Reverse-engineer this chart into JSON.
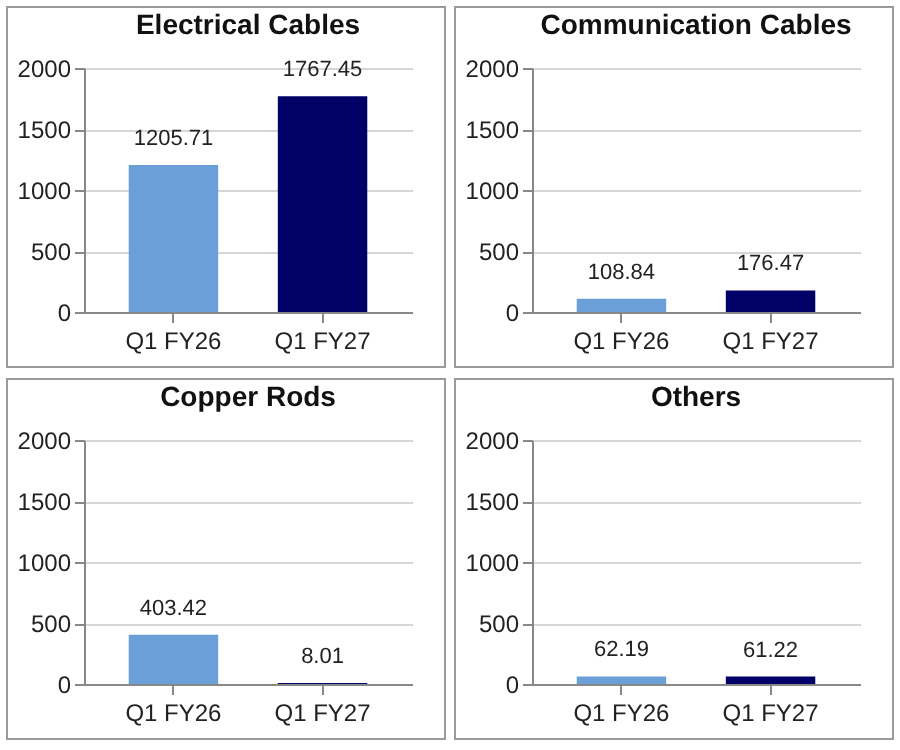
{
  "chart_data": [
    {
      "type": "bar",
      "title": "Electrical Cables",
      "categories": [
        "Q1 FY26",
        "Q1 FY27"
      ],
      "values": [
        1205.71,
        1767.45
      ],
      "colors": [
        "#6a9fd8",
        "#000066"
      ],
      "ylim": [
        0,
        2000
      ],
      "yticks": [
        0,
        500,
        1000,
        1500,
        2000
      ],
      "grid": "y",
      "data_labels": true
    },
    {
      "type": "bar",
      "title": "Communication Cables",
      "categories": [
        "Q1 FY26",
        "Q1 FY27"
      ],
      "values": [
        108.84,
        176.47
      ],
      "colors": [
        "#6a9fd8",
        "#000066"
      ],
      "ylim": [
        0,
        2000
      ],
      "yticks": [
        0,
        500,
        1000,
        1500,
        2000
      ],
      "grid": "y",
      "data_labels": true
    },
    {
      "type": "bar",
      "title": "Copper Rods",
      "categories": [
        "Q1 FY26",
        "Q1 FY27"
      ],
      "values": [
        403.42,
        8.01
      ],
      "colors": [
        "#6a9fd8",
        "#000066"
      ],
      "ylim": [
        0,
        2000
      ],
      "yticks": [
        0,
        500,
        1000,
        1500,
        2000
      ],
      "grid": "y",
      "data_labels": true
    },
    {
      "type": "bar",
      "title": "Others",
      "categories": [
        "Q1 FY26",
        "Q1 FY27"
      ],
      "values": [
        62.19,
        61.22
      ],
      "colors": [
        "#6a9fd8",
        "#000066"
      ],
      "ylim": [
        0,
        2000
      ],
      "yticks": [
        0,
        500,
        1000,
        1500,
        2000
      ],
      "grid": "y",
      "data_labels": true
    }
  ]
}
